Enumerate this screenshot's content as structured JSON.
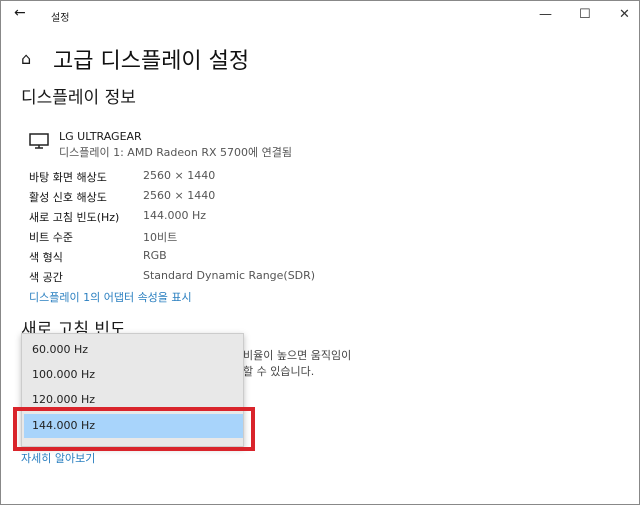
{
  "titlebar": {
    "title": "설정",
    "back_icon": "arrow-left-icon",
    "minimize": "—",
    "maximize": "☐",
    "close": "✕"
  },
  "header": {
    "home_icon": "home-icon",
    "title": "고급 디스플레이 설정"
  },
  "display_info": {
    "heading": "디스플레이 정보",
    "monitor_icon": "monitor-icon",
    "monitor_name": "LG ULTRAGEAR",
    "monitor_sub": "디스플레이 1: AMD Radeon RX 5700에 연결됨",
    "rows": [
      {
        "label": "바탕 화면 해상도",
        "value": "2560 × 1440"
      },
      {
        "label": "활성 신호 해상도",
        "value": "2560 × 1440"
      },
      {
        "label": "새로 고침 빈도(Hz)",
        "value": "144.000 Hz"
      },
      {
        "label": "비트 수준",
        "value": "10비트"
      },
      {
        "label": "색 형식",
        "value": "RGB"
      },
      {
        "label": "색 공간",
        "value": "Standard Dynamic Range(SDR)"
      }
    ],
    "adapter_link": "디스플레이 1의 어댑터 속성을 표시"
  },
  "refresh": {
    "heading": "새로 고침 빈도",
    "desc_line1": "비율이 높으면 움직임이",
    "desc_line2": "할 수 있습니다.",
    "options": [
      "60.000 Hz",
      "100.000 Hz",
      "120.000 Hz",
      "144.000 Hz"
    ],
    "selected": "144.000 Hz",
    "highlight_color": "#d9242b",
    "learn_more": "자세히 알아보기"
  }
}
